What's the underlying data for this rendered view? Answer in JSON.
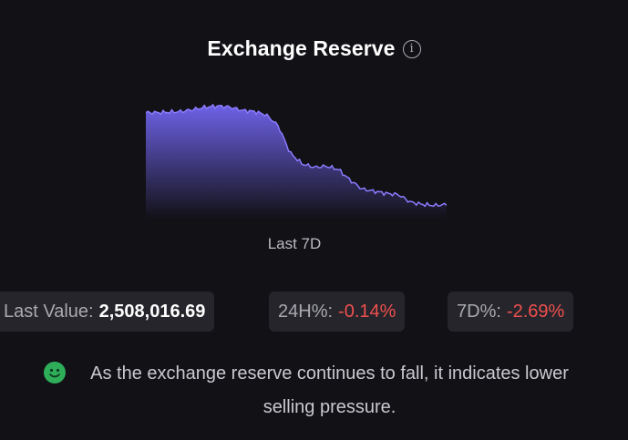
{
  "header": {
    "title": "Exchange Reserve",
    "info_icon": "info-circle-icon"
  },
  "chart_data": {
    "type": "area",
    "title": "",
    "period_label": "Last 7D",
    "y_relative": [
      0.92,
      0.92,
      0.925,
      0.93,
      0.95,
      0.97,
      0.98,
      0.97,
      0.94,
      0.93,
      0.9,
      0.8,
      0.55,
      0.45,
      0.42,
      0.43,
      0.4,
      0.3,
      0.22,
      0.2,
      0.18,
      0.17,
      0.1,
      0.08,
      0.07,
      0.08
    ],
    "colors": {
      "line": "#8b7bff",
      "fill_top": "#6e62e8",
      "fill_bottom": "#121116"
    },
    "grid": false,
    "legend": "none"
  },
  "stats": {
    "last_value": {
      "label": "Last Value:",
      "value": "2,508,016.69"
    },
    "change_24h": {
      "label": "24H%:",
      "value": "-0.14%"
    },
    "change_7d": {
      "label": "7D%:",
      "value": "-2.69%"
    }
  },
  "note": {
    "icon": "smile-icon",
    "text": "As the exchange reserve continues to fall, it indicates lower selling pressure."
  },
  "colors": {
    "background": "#121116",
    "stat_bg": "#25252b",
    "negative": "#f0504f",
    "accent": "#8b7bff"
  }
}
